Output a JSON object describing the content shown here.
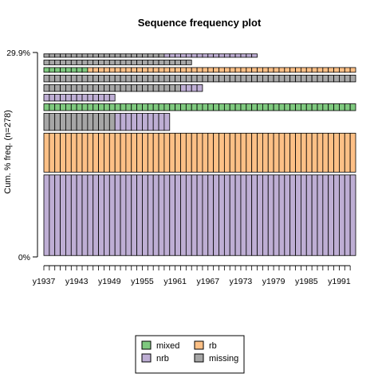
{
  "chart_data": {
    "type": "sequence-frequency",
    "title": "Sequence frequency plot",
    "ylabel": "Cum. % freq. (n=278)",
    "y_tick_labels": [
      "29.9%",
      "0%"
    ],
    "y_range_percent": [
      0,
      29.9
    ],
    "time_range": [
      1937,
      1994
    ],
    "x_tick_labels": [
      "y1937",
      "y1943",
      "y1949",
      "y1955",
      "y1961",
      "y1967",
      "y1973",
      "y1979",
      "y1985",
      "y1991"
    ],
    "x_tick_years": [
      1937,
      1943,
      1949,
      1955,
      1961,
      1967,
      1973,
      1979,
      1985,
      1991
    ],
    "states": [
      {
        "code": "mixed",
        "label": "mixed",
        "color": "#7fc97f"
      },
      {
        "code": "rb",
        "label": "rb",
        "color": "#fdc086"
      },
      {
        "code": "nrb",
        "label": "nrb",
        "color": "#beaed4"
      },
      {
        "code": "missing",
        "label": "missing",
        "color": "#a6a6a6"
      }
    ],
    "sequences_bottom_to_top": [
      {
        "freq_pct": 12.2,
        "segments": [
          {
            "state": "nrb",
            "from": 1937,
            "to": 1994
          }
        ]
      },
      {
        "freq_pct": 6.1,
        "segments": [
          {
            "state": "rb",
            "from": 1937,
            "to": 1994
          }
        ]
      },
      {
        "freq_pct": 2.9,
        "segments": [
          {
            "state": "missing",
            "from": 1937,
            "to": 1950
          },
          {
            "state": "nrb",
            "from": 1950,
            "to": 1960
          }
        ]
      },
      {
        "freq_pct": 1.4,
        "segments": [
          {
            "state": "mixed",
            "from": 1937,
            "to": 1994
          }
        ]
      },
      {
        "freq_pct": 1.4,
        "segments": [
          {
            "state": "nrb",
            "from": 1937,
            "to": 1950
          }
        ]
      },
      {
        "freq_pct": 1.4,
        "segments": [
          {
            "state": "missing",
            "from": 1937,
            "to": 1962
          },
          {
            "state": "nrb",
            "from": 1962,
            "to": 1966
          }
        ]
      },
      {
        "freq_pct": 1.4,
        "segments": [
          {
            "state": "missing",
            "from": 1937,
            "to": 1994
          }
        ]
      },
      {
        "freq_pct": 1.1,
        "segments": [
          {
            "state": "mixed",
            "from": 1937,
            "to": 1945
          },
          {
            "state": "rb",
            "from": 1945,
            "to": 1994
          }
        ]
      },
      {
        "freq_pct": 1.1,
        "segments": [
          {
            "state": "missing",
            "from": 1937,
            "to": 1964
          }
        ]
      },
      {
        "freq_pct": 0.9,
        "segments": [
          {
            "state": "missing",
            "from": 1937,
            "to": 1959
          },
          {
            "state": "nrb",
            "from": 1959,
            "to": 1976
          }
        ]
      }
    ],
    "legend_position": "bottom"
  }
}
